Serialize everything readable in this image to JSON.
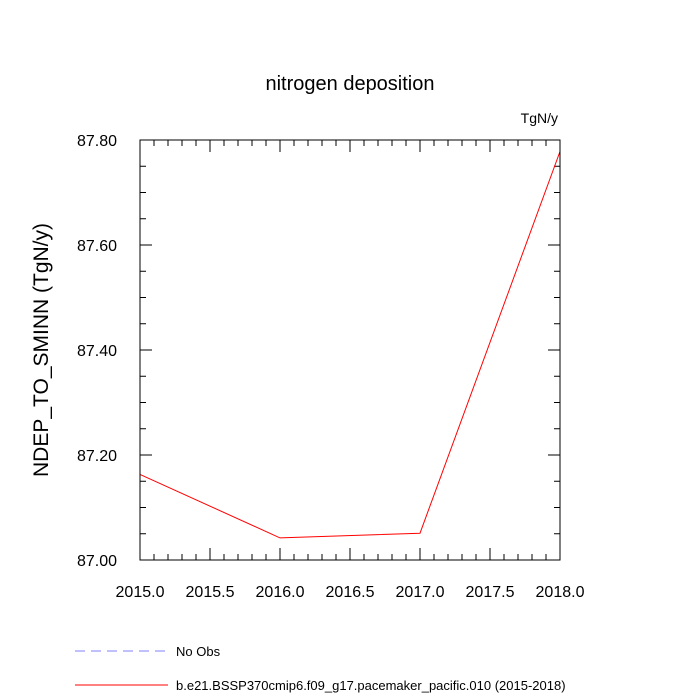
{
  "chart_data": {
    "type": "line",
    "title": "nitrogen deposition",
    "units_label": "TgN/y",
    "ylabel": "NDEP_TO_SMINN  (TgN/y)",
    "xlabel": "",
    "xlim": [
      2015.0,
      2018.0
    ],
    "ylim": [
      87.0,
      87.8
    ],
    "x_ticks": [
      2015.0,
      2015.5,
      2016.0,
      2016.5,
      2017.0,
      2017.5,
      2018.0
    ],
    "x_tick_labels": [
      "2015.0",
      "2015.5",
      "2016.0",
      "2016.5",
      "2017.0",
      "2017.5",
      "2018.0"
    ],
    "y_ticks": [
      87.0,
      87.2,
      87.4,
      87.6,
      87.8
    ],
    "y_tick_labels": [
      "87.00",
      "87.20",
      "87.40",
      "87.60",
      "87.80"
    ],
    "series": [
      {
        "name": "b.e21.BSSP370cmip6.f09_g17.pacemaker_pacific.010 (2015-2018)",
        "color": "#ff0000",
        "dash": "solid",
        "x": [
          2015.0,
          2016.0,
          2017.0,
          2018.0
        ],
        "values": [
          87.163,
          87.042,
          87.051,
          87.778
        ]
      }
    ],
    "legend": [
      {
        "label": "No Obs",
        "color": "#8080ff",
        "dash": "dashed"
      },
      {
        "label": "b.e21.BSSP370cmip6.f09_g17.pacemaker_pacific.010 (2015-2018)",
        "color": "#ff0000",
        "dash": "solid"
      }
    ]
  }
}
